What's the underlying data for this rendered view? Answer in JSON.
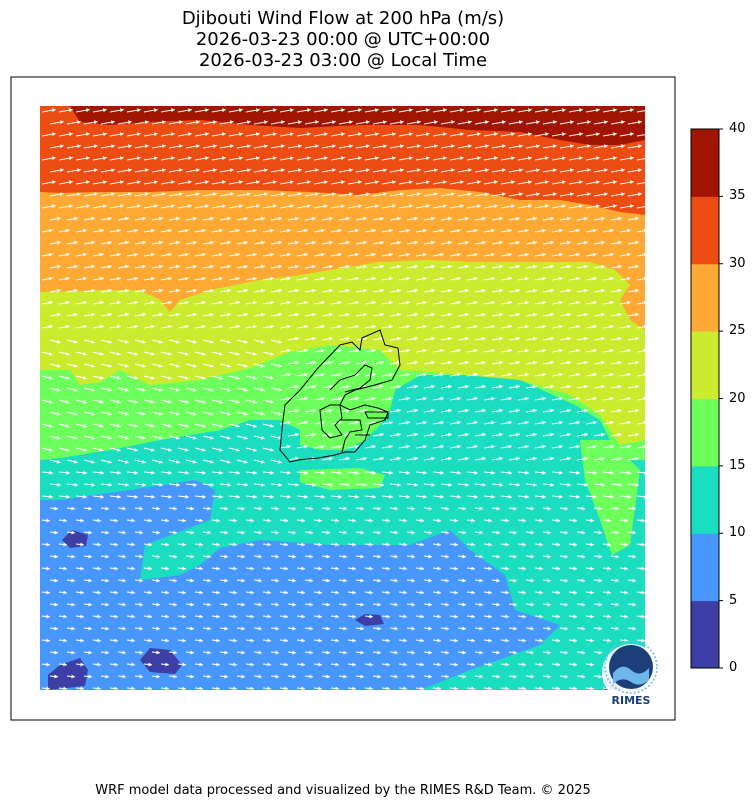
{
  "title": {
    "line1": "Djibouti Wind Flow at 200 hPa (m/s)",
    "line2": "2026-03-23 00:00 @ UTC+00:00",
    "line3": "2026-03-23 03:00 @ Local Time"
  },
  "colorbar": {
    "ticks": [
      "0",
      "5",
      "10",
      "15",
      "20",
      "25",
      "30",
      "35",
      "40"
    ],
    "bands": [
      {
        "range": [
          0,
          5
        ],
        "color": "#3d3fa6"
      },
      {
        "range": [
          5,
          10
        ],
        "color": "#4797fd"
      },
      {
        "range": [
          10,
          15
        ],
        "color": "#1bdec0"
      },
      {
        "range": [
          15,
          20
        ],
        "color": "#6dff5b"
      },
      {
        "range": [
          20,
          25
        ],
        "color": "#cbeb2f"
      },
      {
        "range": [
          25,
          30
        ],
        "color": "#fda934"
      },
      {
        "range": [
          30,
          35
        ],
        "color": "#ed4d12"
      },
      {
        "range": [
          35,
          40
        ],
        "color": "#a31503"
      }
    ]
  },
  "map": {
    "region": "Djibouti",
    "level": "200 hPa",
    "arrow_color": "#ffffff",
    "boundary_color": "#000000"
  },
  "logo": {
    "text": "RIMES"
  },
  "footer": {
    "text": "WRF model data processed and visualized by the RIMES R&D Team. © 2025"
  }
}
